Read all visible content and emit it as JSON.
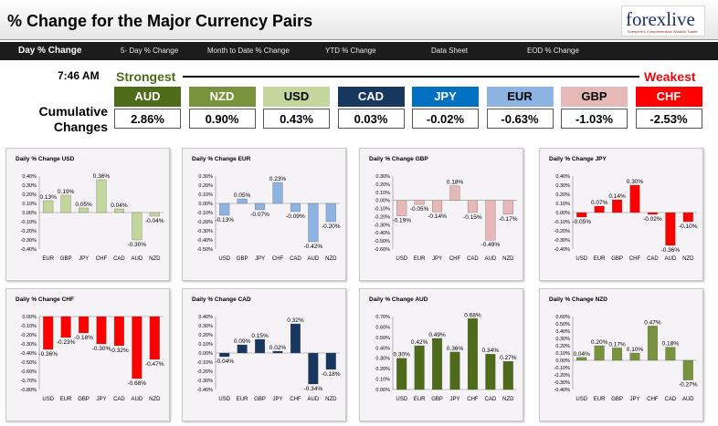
{
  "header": {
    "title": "% Change for the Major Currency Pairs",
    "logo_text": "forexlive",
    "logo_tagline": "Everyone's Comprehensive Window Trader"
  },
  "tabs": [
    "Day % Change",
    "5- Day % Change",
    "Month to Date % Change",
    "YTD % Change",
    "Data Sheet",
    "EOD % Change"
  ],
  "summary": {
    "time": "7:46 AM",
    "strongest_label": "Strongest",
    "weakest_label": "Weakest",
    "cumulative_label": "Cumulative Changes",
    "currencies": [
      {
        "code": "AUD",
        "value": "2.86%",
        "color": "#4e6b1a"
      },
      {
        "code": "NZD",
        "value": "0.90%",
        "color": "#77933c"
      },
      {
        "code": "USD",
        "value": "0.43%",
        "color": "#c3d69b"
      },
      {
        "code": "CAD",
        "value": "0.03%",
        "color": "#17375e"
      },
      {
        "code": "JPY",
        "value": "-0.02%",
        "color": "#0070c0"
      },
      {
        "code": "EUR",
        "value": "-0.63%",
        "color": "#8db3e2"
      },
      {
        "code": "GBP",
        "value": "-1.03%",
        "color": "#e6b9b8"
      },
      {
        "code": "CHF",
        "value": "-2.53%",
        "color": "#ff0000"
      }
    ]
  },
  "chart_data": [
    {
      "type": "bar",
      "title": "Daily % Change USD",
      "color": "#c3d69b",
      "categories": [
        "EUR",
        "GBP",
        "JPY",
        "CHF",
        "CAD",
        "AUD",
        "NZD"
      ],
      "values": [
        0.13,
        0.19,
        0.05,
        0.36,
        0.04,
        -0.3,
        -0.04
      ],
      "labels": [
        "0.13%",
        "0.19%",
        "0.05%",
        "0.36%",
        "0.04%",
        "-0.30%",
        "-0.04%"
      ],
      "yticks": [
        "0.40%",
        "0.30%",
        "0.20%",
        "0.10%",
        "0.00%",
        "-0.10%",
        "-0.20%",
        "-0.30%",
        "-0.40%"
      ],
      "ylim": [
        -0.4,
        0.4
      ]
    },
    {
      "type": "bar",
      "title": "Daily % Change EUR",
      "color": "#8db3e2",
      "categories": [
        "USD",
        "GBP",
        "JPY",
        "CHF",
        "CAD",
        "AUD",
        "NZD"
      ],
      "values": [
        -0.13,
        0.05,
        -0.07,
        0.23,
        -0.09,
        -0.42,
        -0.2
      ],
      "labels": [
        "-0.13%",
        "0.05%",
        "-0.07%",
        "0.23%",
        "-0.09%",
        "-0.42%",
        "-0.20%"
      ],
      "yticks": [
        "0.30%",
        "0.20%",
        "0.10%",
        "0.00%",
        "-0.10%",
        "-0.20%",
        "-0.30%",
        "-0.40%",
        "-0.50%"
      ],
      "ylim": [
        -0.5,
        0.3
      ]
    },
    {
      "type": "bar",
      "title": "Daily % Change GBP",
      "color": "#e6b9b8",
      "categories": [
        "USD",
        "EUR",
        "JPY",
        "CHF",
        "CAD",
        "AUD",
        "NZD"
      ],
      "values": [
        -0.19,
        -0.05,
        -0.14,
        0.18,
        -0.15,
        -0.49,
        -0.17
      ],
      "labels": [
        "-0.19%",
        "-0.05%",
        "-0.14%",
        "0.18%",
        "-0.15%",
        "-0.49%",
        "-0.17%"
      ],
      "yticks": [
        "0.30%",
        "0.20%",
        "0.10%",
        "0.00%",
        "-0.10%",
        "-0.20%",
        "-0.30%",
        "-0.40%",
        "-0.50%",
        "-0.60%"
      ],
      "ylim": [
        -0.6,
        0.3
      ]
    },
    {
      "type": "bar",
      "title": "Daily % Change JPY",
      "color": "#ff0000",
      "categories": [
        "USD",
        "EUR",
        "GBP",
        "CHF",
        "CAD",
        "AUD",
        "NZD"
      ],
      "values": [
        -0.05,
        0.07,
        0.14,
        0.3,
        -0.02,
        -0.36,
        -0.1
      ],
      "labels": [
        "-0.05%",
        "0.07%",
        "0.14%",
        "0.30%",
        "-0.02%",
        "-0.36%",
        "-0.10%"
      ],
      "yticks": [
        "0.40%",
        "0.30%",
        "0.20%",
        "0.10%",
        "0.00%",
        "-0.10%",
        "-0.20%",
        "-0.30%",
        "-0.40%"
      ],
      "ylim": [
        -0.4,
        0.4
      ]
    },
    {
      "type": "bar",
      "title": "Daily % Change CHF",
      "color": "#ff0000",
      "categories": [
        "USD",
        "EUR",
        "GBP",
        "JPY",
        "CAD",
        "AUD",
        "NZD"
      ],
      "values": [
        -0.36,
        -0.23,
        -0.18,
        -0.3,
        -0.32,
        -0.68,
        -0.47
      ],
      "labels": [
        "-0.36%",
        "-0.23%",
        "-0.18%",
        "-0.30%",
        "-0.32%",
        "-0.68%",
        "-0.47%"
      ],
      "yticks": [
        "0.00%",
        "-0.10%",
        "-0.20%",
        "-0.30%",
        "-0.40%",
        "-0.50%",
        "-0.60%",
        "-0.70%",
        "-0.80%"
      ],
      "ylim": [
        -0.8,
        0
      ]
    },
    {
      "type": "bar",
      "title": "Daily % Change CAD",
      "color": "#17375e",
      "categories": [
        "USD",
        "EUR",
        "GBP",
        "JPY",
        "CHF",
        "AUD",
        "NZD"
      ],
      "values": [
        -0.04,
        0.09,
        0.15,
        0.02,
        0.32,
        -0.34,
        -0.18
      ],
      "labels": [
        "-0.04%",
        "0.09%",
        "0.15%",
        "0.02%",
        "0.32%",
        "-0.34%",
        "-0.18%"
      ],
      "yticks": [
        "0.40%",
        "0.30%",
        "0.20%",
        "0.10%",
        "0.00%",
        "-0.10%",
        "-0.20%",
        "-0.30%",
        "-0.40%"
      ],
      "ylim": [
        -0.4,
        0.4
      ]
    },
    {
      "type": "bar",
      "title": "Daily % Change AUD",
      "color": "#4e6b1a",
      "categories": [
        "USD",
        "EUR",
        "GBP",
        "JPY",
        "CHF",
        "CAD",
        "NZD"
      ],
      "values": [
        0.3,
        0.42,
        0.49,
        0.36,
        0.68,
        0.34,
        0.27
      ],
      "labels": [
        "0.30%",
        "0.42%",
        "0.49%",
        "0.36%",
        "0.68%",
        "0.34%",
        "0.27%"
      ],
      "yticks": [
        "0.70%",
        "0.60%",
        "0.50%",
        "0.40%",
        "0.30%",
        "0.20%",
        "0.10%",
        "0.00%"
      ],
      "ylim": [
        0,
        0.7
      ]
    },
    {
      "type": "bar",
      "title": "Daily % Change NZD",
      "color": "#77933c",
      "categories": [
        "USD",
        "EUR",
        "GBP",
        "JPY",
        "CHF",
        "CAD",
        "AUD"
      ],
      "values": [
        0.04,
        0.2,
        0.17,
        0.1,
        0.47,
        0.18,
        -0.27
      ],
      "labels": [
        "0.04%",
        "0.20%",
        "0.17%",
        "0.10%",
        "0.47%",
        "0.18%",
        "-0.27%"
      ],
      "yticks": [
        "0.60%",
        "0.50%",
        "0.40%",
        "0.30%",
        "0.20%",
        "0.10%",
        "0.00%",
        "-0.10%",
        "-0.20%",
        "-0.30%",
        "-0.40%"
      ],
      "ylim": [
        -0.4,
        0.6
      ]
    }
  ]
}
